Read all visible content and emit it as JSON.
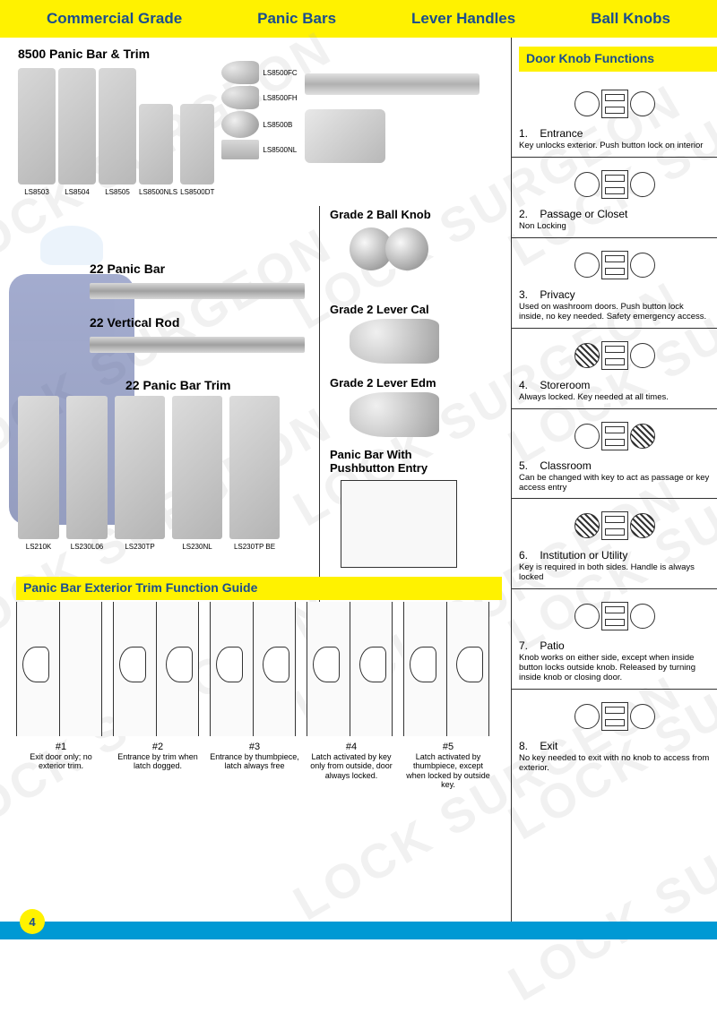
{
  "colors": {
    "yellow": "#fff200",
    "blue": "#1a4d8f",
    "cyan": "#0099d4",
    "grey_light": "#d8d8d8",
    "grey_dark": "#a0a0a0"
  },
  "header": {
    "items": [
      "Commercial Grade",
      "Panic Bars",
      "Lever Handles",
      "Ball Knobs"
    ]
  },
  "watermark": "LOCK SURGEON",
  "page_number": "4",
  "s8500": {
    "title": "8500 Panic Bar & Trim",
    "plates": [
      "LS8503",
      "LS8504",
      "LS8505",
      "LS8500NLS",
      "LS8500DT"
    ],
    "levers": [
      "LS8500FC",
      "LS8500FH",
      "LS8500B",
      "LS8500NL"
    ]
  },
  "s22": {
    "bar": "22 Panic Bar",
    "vrod": "22 Vertical Rod",
    "trim": "22 Panic Bar Trim",
    "trim_labels": [
      "LS210K",
      "LS230L06",
      "LS230TP",
      "LS230NL",
      "LS230TP BE"
    ]
  },
  "grade2": {
    "knob": "Grade 2 Ball Knob",
    "lever_cal": "Grade 2 Lever Cal",
    "lever_edm": "Grade 2 Lever Edm"
  },
  "pb_push": {
    "line1": "Panic Bar With",
    "line2": "Pushbutton Entry"
  },
  "trim_guide": {
    "title": "Panic Bar Exterior Trim Function Guide",
    "items": [
      {
        "num": "#1",
        "desc": "Exit door only; no exterior trim."
      },
      {
        "num": "#2",
        "desc": "Entrance by trim when latch dogged."
      },
      {
        "num": "#3",
        "desc": "Entrance by thumbpiece, latch always free"
      },
      {
        "num": "#4",
        "desc": "Latch activated by key only from outside, door always locked."
      },
      {
        "num": "#5",
        "desc": "Latch activated by thumbpiece, except when locked by outside key."
      }
    ]
  },
  "knob_functions": {
    "title": "Door Knob Functions",
    "items": [
      {
        "num": "1.",
        "name": "Entrance",
        "desc": "Key unlocks exterior. Push button lock on interior",
        "hatch": [
          false,
          false
        ]
      },
      {
        "num": "2.",
        "name": "Passage or Closet",
        "desc": "Non Locking",
        "hatch": [
          false,
          false
        ]
      },
      {
        "num": "3.",
        "name": "Privacy",
        "desc": "Used on washroom doors. Push button lock inside, no key needed. Safety emergency access.",
        "hatch": [
          false,
          false
        ]
      },
      {
        "num": "4.",
        "name": "Storeroom",
        "desc": "Always locked. Key needed at all times.",
        "hatch": [
          true,
          false
        ]
      },
      {
        "num": "5.",
        "name": "Classroom",
        "desc": "Can be changed with key to act as passage or key access entry",
        "hatch": [
          false,
          true
        ]
      },
      {
        "num": "6.",
        "name": "Institution or Utility",
        "desc": "Key is required in both sides. Handle is always locked",
        "hatch": [
          true,
          true
        ]
      },
      {
        "num": "7.",
        "name": "Patio",
        "desc": "Knob works on either side, except when inside button locks outside knob. Released by turning inside knob or closing door.",
        "hatch": [
          false,
          false
        ]
      },
      {
        "num": "8.",
        "name": "Exit",
        "desc": "No key needed to exit with no knob to access from exterior.",
        "hatch": [
          false,
          false
        ]
      }
    ]
  }
}
